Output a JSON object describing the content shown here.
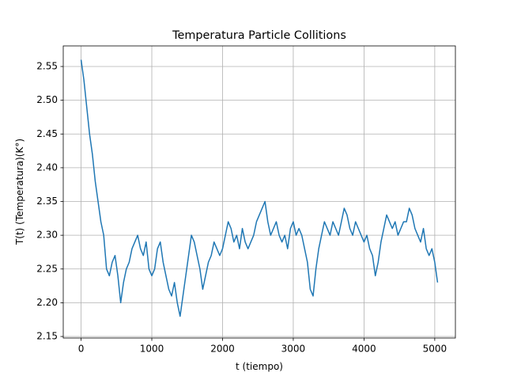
{
  "chart_data": {
    "type": "line",
    "title": "Temperatura Particle Collitions",
    "xlabel": "t (tiempo)",
    "ylabel": "T(t) (Temperatura)(K°)",
    "x": [
      0,
      40,
      80,
      120,
      160,
      200,
      240,
      280,
      320,
      360,
      400,
      440,
      480,
      520,
      560,
      600,
      640,
      680,
      720,
      760,
      800,
      840,
      880,
      920,
      960,
      1000,
      1040,
      1080,
      1120,
      1160,
      1200,
      1240,
      1280,
      1320,
      1360,
      1400,
      1440,
      1480,
      1520,
      1560,
      1600,
      1640,
      1680,
      1720,
      1760,
      1800,
      1840,
      1880,
      1920,
      1960,
      2000,
      2040,
      2080,
      2120,
      2160,
      2200,
      2240,
      2280,
      2320,
      2360,
      2400,
      2440,
      2480,
      2520,
      2560,
      2600,
      2640,
      2680,
      2720,
      2760,
      2800,
      2840,
      2880,
      2920,
      2960,
      3000,
      3040,
      3080,
      3120,
      3160,
      3200,
      3240,
      3280,
      3320,
      3360,
      3400,
      3440,
      3480,
      3520,
      3560,
      3600,
      3640,
      3680,
      3720,
      3760,
      3800,
      3840,
      3880,
      3920,
      3960,
      4000,
      4040,
      4080,
      4120,
      4160,
      4200,
      4240,
      4280,
      4320,
      4360,
      4400,
      4440,
      4480,
      4520,
      4560,
      4600,
      4640,
      4680,
      4720,
      4760,
      4800,
      4840,
      4880,
      4920,
      4960,
      5000,
      5040
    ],
    "series": [
      {
        "color": "#1f77b4",
        "values": [
          2.56,
          2.53,
          2.49,
          2.45,
          2.42,
          2.38,
          2.35,
          2.32,
          2.3,
          2.25,
          2.24,
          2.26,
          2.27,
          2.24,
          2.2,
          2.23,
          2.25,
          2.26,
          2.28,
          2.29,
          2.3,
          2.28,
          2.27,
          2.29,
          2.25,
          2.24,
          2.25,
          2.28,
          2.29,
          2.26,
          2.24,
          2.22,
          2.21,
          2.23,
          2.2,
          2.18,
          2.21,
          2.24,
          2.27,
          2.3,
          2.29,
          2.27,
          2.25,
          2.22,
          2.24,
          2.26,
          2.27,
          2.29,
          2.28,
          2.27,
          2.28,
          2.3,
          2.32,
          2.31,
          2.29,
          2.3,
          2.28,
          2.31,
          2.29,
          2.28,
          2.29,
          2.3,
          2.32,
          2.33,
          2.34,
          2.35,
          2.32,
          2.3,
          2.31,
          2.32,
          2.3,
          2.29,
          2.3,
          2.28,
          2.31,
          2.32,
          2.3,
          2.31,
          2.3,
          2.28,
          2.26,
          2.22,
          2.21,
          2.25,
          2.28,
          2.3,
          2.32,
          2.31,
          2.3,
          2.32,
          2.31,
          2.3,
          2.32,
          2.34,
          2.33,
          2.31,
          2.3,
          2.32,
          2.31,
          2.3,
          2.29,
          2.3,
          2.28,
          2.27,
          2.24,
          2.26,
          2.29,
          2.31,
          2.33,
          2.32,
          2.31,
          2.32,
          2.3,
          2.31,
          2.32,
          2.32,
          2.34,
          2.33,
          2.31,
          2.3,
          2.29,
          2.31,
          2.28,
          2.27,
          2.28,
          2.26,
          2.23
        ]
      }
    ],
    "xlim": [
      -252,
      5292
    ],
    "ylim": [
      2.1477,
      2.5805
    ],
    "xticks": [
      0,
      1000,
      2000,
      3000,
      4000,
      5000
    ],
    "yticks": [
      2.15,
      {
        "value": 2.2,
        "label": "2.20"
      },
      2.25,
      {
        "value": 2.3,
        "label": "2.30"
      },
      2.35,
      {
        "value": 2.4,
        "label": "2.40"
      },
      2.45,
      {
        "value": 2.5,
        "label": "2.50"
      },
      2.55
    ],
    "grid": true
  }
}
